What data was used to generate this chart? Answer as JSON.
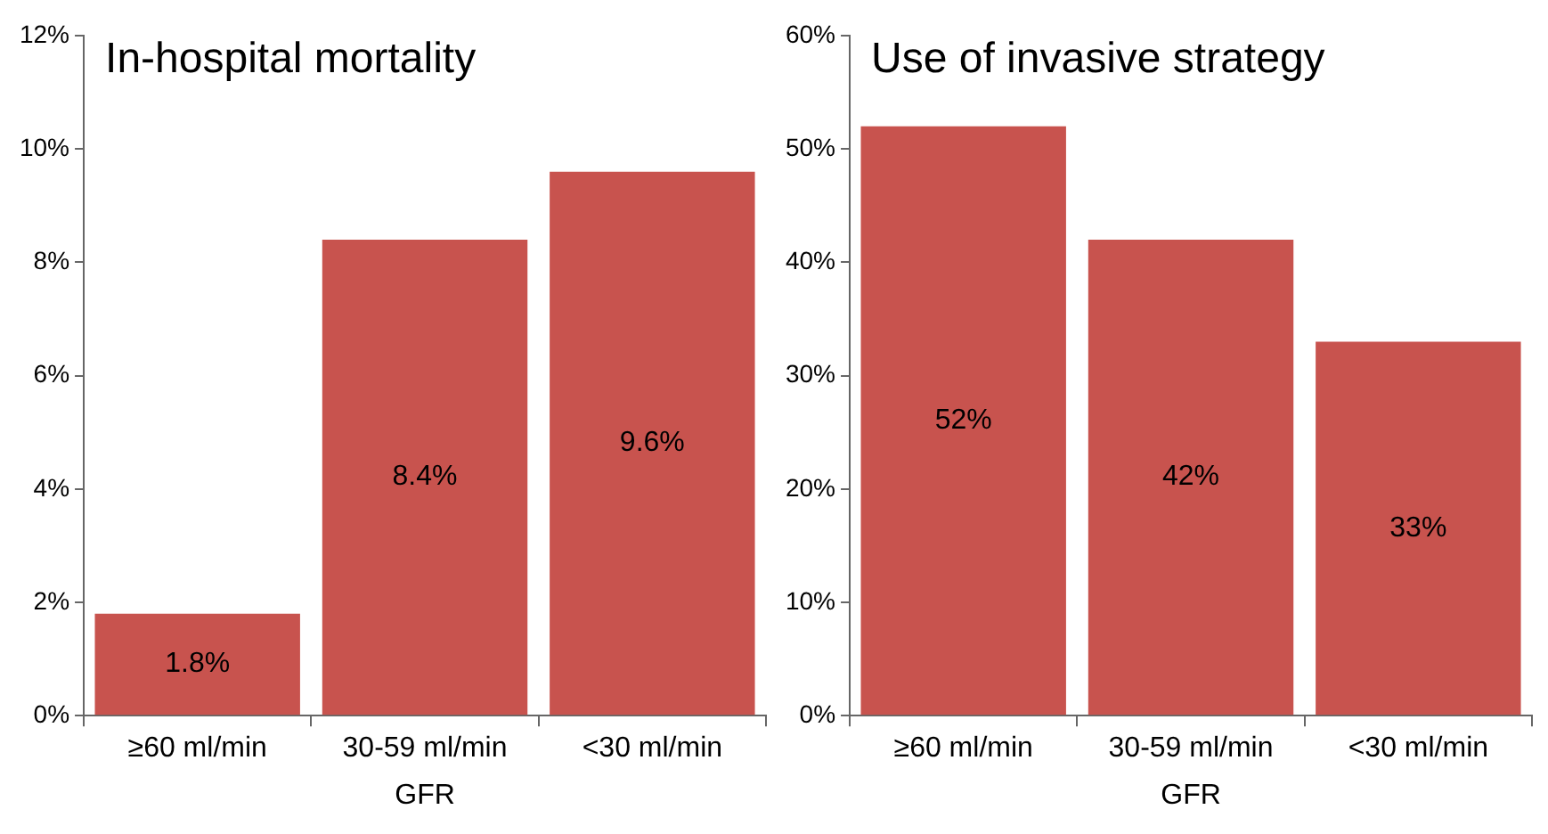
{
  "chart_data": [
    {
      "type": "bar",
      "title": "In-hospital mortality",
      "xlabel": "GFR",
      "categories": [
        "≥60 ml/min",
        "30-59 ml/min",
        "<30 ml/min"
      ],
      "values": [
        1.8,
        8.4,
        9.6
      ],
      "value_labels": [
        "1.8%",
        "8.4%",
        "9.6%"
      ],
      "color": "#c8534e",
      "ylim": [
        0,
        12
      ],
      "yticks": [
        {
          "value": 0,
          "label": "0%"
        },
        {
          "value": 2,
          "label": "2%"
        },
        {
          "value": 4,
          "label": "4%"
        },
        {
          "value": 6,
          "label": "6%"
        },
        {
          "value": 8,
          "label": "8%"
        },
        {
          "value": 10,
          "label": "10%"
        },
        {
          "value": 12,
          "label": "12%"
        }
      ],
      "grid": false,
      "legend": false
    },
    {
      "type": "bar",
      "title": "Use of invasive strategy",
      "xlabel": "GFR",
      "categories": [
        "≥60 ml/min",
        "30-59 ml/min",
        "<30 ml/min"
      ],
      "values": [
        52,
        42,
        33
      ],
      "value_labels": [
        "52%",
        "42%",
        "33%"
      ],
      "color": "#c8534e",
      "ylim": [
        0,
        60
      ],
      "yticks": [
        {
          "value": 0,
          "label": "0%"
        },
        {
          "value": 10,
          "label": "10%"
        },
        {
          "value": 20,
          "label": "20%"
        },
        {
          "value": 30,
          "label": "30%"
        },
        {
          "value": 40,
          "label": "40%"
        },
        {
          "value": 50,
          "label": "50%"
        },
        {
          "value": 60,
          "label": "60%"
        }
      ],
      "grid": false,
      "legend": false
    }
  ]
}
